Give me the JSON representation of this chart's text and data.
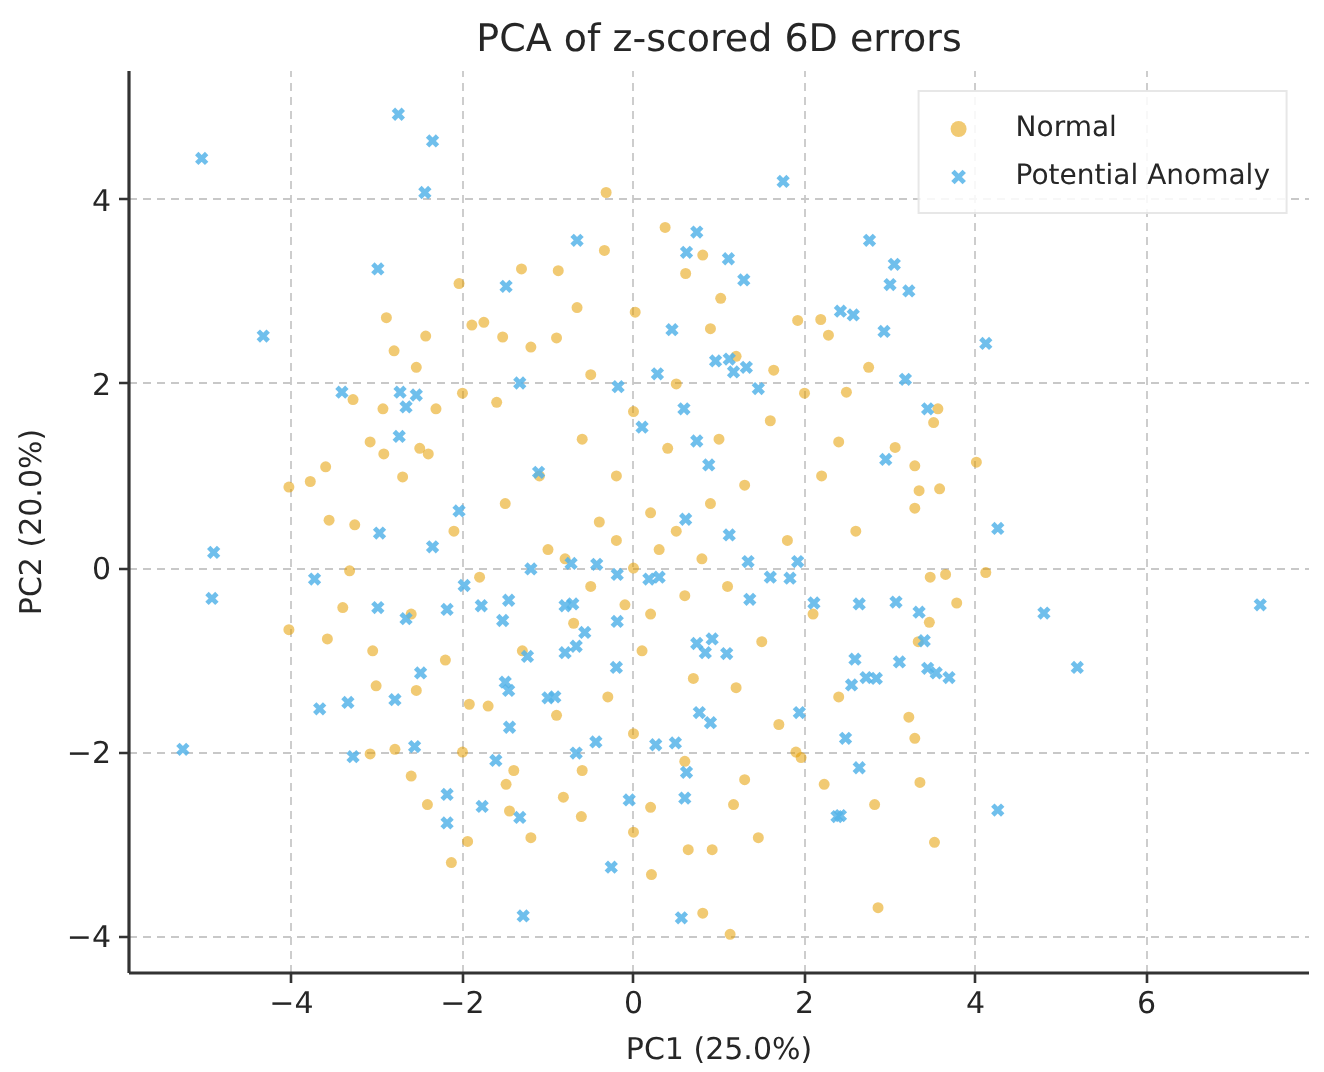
{
  "chart_data": {
    "type": "scatter",
    "title": "PCA of z-scored 6D errors",
    "xlabel": "PC1 (25.0%)",
    "ylabel": "PC2 (20.0%)",
    "xlim": [
      -5.9,
      7.9
    ],
    "ylim": [
      -4.4,
      5.4
    ],
    "xticks": [
      {
        "value": -4,
        "label": "−4"
      },
      {
        "value": -2,
        "label": "−2"
      },
      0,
      2,
      4,
      6
    ],
    "yticks": [
      {
        "value": -4,
        "label": "−4"
      },
      {
        "value": -2,
        "label": "−2"
      },
      0,
      2,
      4
    ],
    "grid": true,
    "legend": "top right",
    "series": [
      {
        "name": "Normal",
        "color": "#e69f00",
        "marker": "circle",
        "x": [
          -2.04,
          -2.89,
          -2.8,
          -2.43,
          -2.54,
          -1.89,
          -1.75,
          -3.28,
          -2.93,
          -3.08,
          -3.6,
          -3.78,
          -4.03,
          -2.31,
          -1.31,
          -1.53,
          -2.92,
          -2.4,
          -2.7,
          -0.32,
          -0.34,
          0.37,
          0.81,
          -0.88,
          0.61,
          1.02,
          1.92,
          2.28,
          2.75,
          2.49,
          2.4,
          3.06,
          2.19,
          1.64,
          0.02,
          -0.66,
          3.56,
          3.51,
          3.29,
          4.01,
          3.34,
          3.58,
          3.29,
          3.47,
          3.65,
          4.12,
          3.78,
          3.46,
          3.33,
          3.22,
          3.29,
          3.35,
          3.52,
          -4.03,
          -3.58,
          -3.32,
          -3.05,
          -3.01,
          -3.08,
          -2.79,
          -2.6,
          -2.41,
          -1.94,
          -2.13,
          -3.56,
          -3.26,
          -3.4,
          -2.54,
          -1.92,
          -1.49,
          -1.45,
          1.13,
          0.81,
          2.86,
          0.21,
          0.64,
          0.92,
          1.46,
          0.0,
          -1.2,
          1.17,
          2.23,
          1.96,
          2.82,
          -0.82,
          -0.61,
          0.0,
          0.3,
          -0.4,
          0.6,
          -0.7,
          0.1,
          -0.2,
          0.9,
          -1.0,
          1.1,
          0.4,
          -0.6,
          1.3,
          -1.3,
          0.7,
          -0.3,
          1.5,
          -1.5,
          0.2,
          -0.1,
          0.5,
          -0.8,
          0.8,
          -0.5,
          0.2,
          -0.2,
          1.0,
          -1.1,
          1.2,
          -0.9,
          0.0,
          0.0,
          1.8,
          -1.8,
          1.6,
          -1.6,
          1.7,
          -1.7,
          0.5,
          -0.5,
          0.6,
          -0.6,
          2.1,
          -2.1,
          2.2,
          -2.2,
          1.2,
          -1.2,
          1.3,
          -1.4,
          2.4,
          -2.5,
          2.6,
          -2.6,
          0.9,
          -0.9,
          0.2,
          2.0,
          -2.0,
          1.9,
          -2.0
        ],
        "values": [
          3.09,
          2.72,
          2.36,
          2.52,
          2.18,
          2.64,
          2.67,
          1.83,
          1.73,
          1.37,
          1.1,
          0.94,
          0.88,
          1.73,
          3.25,
          2.51,
          1.24,
          1.24,
          0.99,
          4.08,
          3.45,
          3.7,
          3.4,
          3.23,
          3.2,
          2.93,
          2.69,
          2.53,
          2.18,
          1.91,
          1.37,
          1.31,
          2.7,
          2.15,
          2.78,
          2.83,
          1.73,
          1.58,
          1.11,
          1.15,
          0.84,
          0.86,
          0.65,
          -0.1,
          -0.07,
          -0.05,
          -0.38,
          -0.59,
          -0.8,
          -1.62,
          -1.85,
          -2.33,
          -2.98,
          -0.67,
          -0.77,
          -0.03,
          -0.9,
          -1.28,
          -2.02,
          -1.97,
          -2.26,
          -2.57,
          -2.97,
          -3.2,
          0.52,
          0.47,
          -0.43,
          -1.33,
          -1.48,
          -2.35,
          -2.64,
          -3.98,
          -3.75,
          -3.69,
          -3.33,
          -3.06,
          -3.06,
          -2.93,
          -2.87,
          -2.93,
          -2.57,
          -2.35,
          -2.06,
          -2.57,
          -2.49,
          -2.7,
          0.0,
          0.2,
          0.5,
          -0.3,
          -0.6,
          -0.9,
          1.0,
          0.7,
          0.2,
          -0.2,
          1.3,
          1.4,
          0.9,
          -0.9,
          -1.2,
          -1.4,
          -0.8,
          0.7,
          0.6,
          -0.4,
          0.4,
          0.1,
          0.1,
          -0.2,
          -0.5,
          0.3,
          1.4,
          1.0,
          -1.3,
          -1.6,
          1.7,
          -1.8,
          0.3,
          -0.1,
          1.6,
          1.8,
          -1.7,
          -1.5,
          2.0,
          2.1,
          -2.1,
          -2.2,
          -0.5,
          0.4,
          1.0,
          -1.0,
          2.3,
          2.4,
          -2.3,
          -2.2,
          -1.4,
          1.3,
          0.4,
          -0.5,
          2.6,
          2.5,
          -2.6,
          1.9,
          1.9,
          -2.0,
          -2.0
        ]
      },
      {
        "name": "Potential Anomaly",
        "color": "#56b4e9",
        "marker": "cross",
        "x": [
          -5.05,
          -2.75,
          -2.35,
          -2.44,
          -2.99,
          -1.49,
          -4.33,
          -3.41,
          -2.73,
          -2.54,
          -2.66,
          -1.33,
          -2.74,
          -2.04,
          1.75,
          -0.66,
          0.74,
          0.62,
          1.11,
          1.29,
          2.76,
          3.05,
          3.0,
          3.22,
          2.42,
          2.57,
          2.93,
          0.45,
          0.96,
          1.12,
          1.17,
          1.32,
          1.46,
          3.18,
          0.28,
          -0.18,
          0.59,
          0.1,
          0.74,
          0.88,
          2.95,
          -1.11,
          0.61,
          4.12,
          3.44,
          -2.97,
          -2.35,
          -4.91,
          -4.93,
          -3.73,
          -2.99,
          -2.66,
          -2.18,
          -1.98,
          -1.78,
          -1.46,
          -1.53,
          -2.49,
          -1.5,
          -1.46,
          -3.67,
          -3.34,
          -2.79,
          -1.45,
          -5.27,
          -3.28,
          -2.56,
          -1.61,
          -2.18,
          -2.18,
          -1.77,
          -1.29,
          1.12,
          -1.2,
          -0.73,
          -0.43,
          -0.19,
          0.18,
          0.3,
          -0.8,
          -0.71,
          -0.19,
          -0.57,
          -1.24,
          -0.8,
          -0.67,
          -0.2,
          0.74,
          0.84,
          1.09,
          0.92,
          1.34,
          1.6,
          1.83,
          1.92,
          1.36,
          2.64,
          3.07,
          2.11,
          -1.0,
          -0.92,
          0.77,
          0.9,
          1.94,
          2.59,
          2.55,
          2.72,
          2.84,
          3.11,
          2.48,
          2.64,
          -0.67,
          -0.44,
          0.26,
          0.49,
          0.62,
          0.6,
          -0.05,
          -1.33,
          2.38,
          2.42,
          -0.26,
          0.56,
          4.26,
          3.34,
          3.4,
          3.44,
          3.54,
          3.69,
          4.8,
          5.19,
          7.33,
          4.26
        ],
        "values": [
          4.45,
          4.93,
          4.64,
          4.08,
          3.25,
          3.06,
          2.52,
          1.91,
          1.91,
          1.88,
          1.75,
          2.01,
          1.43,
          0.62,
          4.2,
          3.56,
          3.65,
          3.43,
          3.36,
          3.13,
          3.56,
          3.3,
          3.08,
          3.01,
          2.79,
          2.75,
          2.57,
          2.59,
          2.25,
          2.27,
          2.13,
          2.18,
          1.95,
          2.05,
          2.11,
          1.97,
          1.73,
          1.53,
          1.38,
          1.12,
          1.18,
          1.04,
          0.53,
          2.44,
          1.73,
          0.38,
          0.23,
          0.17,
          -0.33,
          -0.12,
          -0.43,
          -0.55,
          -0.45,
          -0.19,
          -0.41,
          -0.35,
          -0.57,
          -1.14,
          -1.24,
          -1.33,
          -1.53,
          -1.46,
          -1.43,
          -1.73,
          -1.97,
          -2.05,
          -1.94,
          -2.09,
          -2.46,
          -2.77,
          -2.59,
          -3.78,
          0.36,
          -0.01,
          0.05,
          0.04,
          -0.07,
          -0.12,
          -0.1,
          -0.41,
          -0.39,
          -0.58,
          -0.7,
          -0.96,
          -0.92,
          -0.85,
          -1.08,
          -0.82,
          -0.92,
          -0.93,
          -0.77,
          0.07,
          -0.1,
          -0.11,
          0.07,
          -0.34,
          -0.39,
          -0.37,
          -0.38,
          -1.41,
          -1.4,
          -1.57,
          -1.68,
          -1.57,
          -0.99,
          -1.27,
          -1.19,
          -1.2,
          -1.02,
          -1.85,
          -2.17,
          -2.01,
          -1.89,
          -1.92,
          -1.9,
          -2.22,
          -2.5,
          -2.52,
          -2.71,
          -2.7,
          -2.69,
          -3.25,
          -3.8,
          0.43,
          -0.48,
          -0.79,
          -1.09,
          -1.14,
          -1.19,
          -0.49,
          -1.08,
          -0.4,
          -2.63
        ]
      }
    ]
  }
}
